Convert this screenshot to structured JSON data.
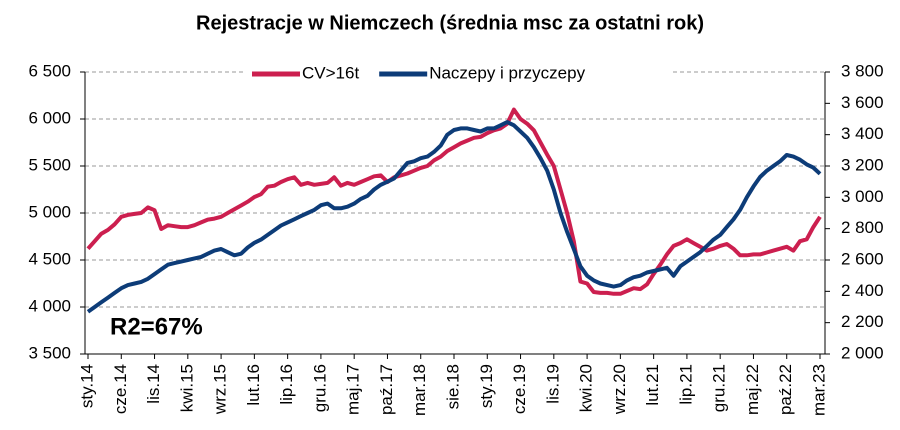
{
  "chart_data": {
    "type": "line",
    "title": "Rejestracje w Niemczech (średnia msc za ostatni rok)",
    "annotation": "R2=67%",
    "legend": "top",
    "grid": true,
    "categories": [
      "sty.14",
      null,
      null,
      null,
      null,
      "cze.14",
      null,
      null,
      null,
      null,
      "lis.14",
      null,
      null,
      null,
      null,
      "kwi.15",
      null,
      null,
      null,
      null,
      "wrz.15",
      null,
      null,
      null,
      null,
      "lut.16",
      null,
      null,
      null,
      null,
      "lip.16",
      null,
      null,
      null,
      null,
      "gru.16",
      null,
      null,
      null,
      null,
      "maj.17",
      null,
      null,
      null,
      null,
      "paź.17",
      null,
      null,
      null,
      null,
      "mar.18",
      null,
      null,
      null,
      null,
      "sie.18",
      null,
      null,
      null,
      null,
      "sty.19",
      null,
      null,
      null,
      null,
      "cze.19",
      null,
      null,
      null,
      null,
      "lis.19",
      null,
      null,
      null,
      null,
      "kwi.20",
      null,
      null,
      null,
      null,
      "wrz.20",
      null,
      null,
      null,
      null,
      "lut.21",
      null,
      null,
      null,
      null,
      "lip.21",
      null,
      null,
      null,
      null,
      "gru.21",
      null,
      null,
      null,
      null,
      "maj.22",
      null,
      null,
      null,
      null,
      "paź.22",
      null,
      null,
      null,
      null,
      "mar.23"
    ],
    "series": [
      {
        "name": "CV>16t",
        "color": "#cc1f4f",
        "axis": "y",
        "values": [
          4620,
          4700,
          4780,
          4820,
          4880,
          4960,
          4980,
          4990,
          5000,
          5060,
          5030,
          4830,
          4870,
          4860,
          4850,
          4850,
          4870,
          4900,
          4930,
          4940,
          4960,
          5000,
          5040,
          5080,
          5120,
          5170,
          5200,
          5280,
          5290,
          5330,
          5360,
          5380,
          5300,
          5320,
          5300,
          5310,
          5320,
          5380,
          5290,
          5320,
          5300,
          5330,
          5360,
          5390,
          5400,
          5330,
          5380,
          5400,
          5420,
          5450,
          5480,
          5500,
          5560,
          5600,
          5660,
          5700,
          5740,
          5770,
          5800,
          5810,
          5850,
          5880,
          5900,
          5950,
          6100,
          6000,
          5950,
          5880,
          5750,
          5620,
          5500,
          5250,
          5000,
          4700,
          4270,
          4250,
          4160,
          4150,
          4150,
          4140,
          4140,
          4170,
          4200,
          4190,
          4240,
          4350,
          4450,
          4560,
          4650,
          4680,
          4720,
          4680,
          4640,
          4600,
          4620,
          4650,
          4670,
          4620,
          4550,
          4550,
          4560,
          4560,
          4580,
          4600,
          4620,
          4640,
          4600,
          4700,
          4720,
          4850,
          4960
        ]
      },
      {
        "name": "Naczepy i przyczepy",
        "color": "#0d3c78",
        "axis": "y2",
        "values": [
          2270,
          2300,
          2330,
          2360,
          2390,
          2420,
          2440,
          2450,
          2460,
          2480,
          2510,
          2540,
          2570,
          2580,
          2590,
          2600,
          2610,
          2620,
          2640,
          2660,
          2670,
          2650,
          2630,
          2640,
          2680,
          2710,
          2730,
          2760,
          2790,
          2820,
          2840,
          2860,
          2880,
          2900,
          2920,
          2950,
          2960,
          2930,
          2930,
          2940,
          2960,
          2990,
          3010,
          3050,
          3080,
          3100,
          3120,
          3170,
          3220,
          3230,
          3250,
          3260,
          3290,
          3330,
          3400,
          3430,
          3440,
          3440,
          3430,
          3420,
          3440,
          3440,
          3460,
          3480,
          3460,
          3420,
          3380,
          3320,
          3250,
          3170,
          3050,
          2900,
          2780,
          2670,
          2560,
          2500,
          2470,
          2450,
          2440,
          2430,
          2440,
          2470,
          2490,
          2500,
          2520,
          2530,
          2540,
          2550,
          2500,
          2560,
          2590,
          2620,
          2650,
          2690,
          2730,
          2760,
          2810,
          2860,
          2920,
          3000,
          3070,
          3130,
          3170,
          3200,
          3230,
          3270,
          3260,
          3240,
          3210,
          3190,
          3150
        ]
      }
    ],
    "ylim": [
      3500,
      6500
    ],
    "yticks": [
      {
        "value": 3500,
        "label": "3 500"
      },
      {
        "value": 4000,
        "label": "4 000"
      },
      {
        "value": 4500,
        "label": "4 500"
      },
      {
        "value": 5000,
        "label": "5 000"
      },
      {
        "value": 5500,
        "label": "5 500"
      },
      {
        "value": 6000,
        "label": "6 000"
      },
      {
        "value": 6500,
        "label": "6 500"
      }
    ],
    "y2lim": [
      2000,
      3800
    ],
    "y2ticks": [
      {
        "value": 2000,
        "label": "2 000"
      },
      {
        "value": 2200,
        "label": "2 200"
      },
      {
        "value": 2400,
        "label": "2 400"
      },
      {
        "value": 2600,
        "label": "2 600"
      },
      {
        "value": 2800,
        "label": "2 800"
      },
      {
        "value": 3000,
        "label": "3 000"
      },
      {
        "value": 3200,
        "label": "3 200"
      },
      {
        "value": 3400,
        "label": "3 400"
      },
      {
        "value": 3600,
        "label": "3 600"
      },
      {
        "value": 3800,
        "label": "3 800"
      }
    ]
  }
}
